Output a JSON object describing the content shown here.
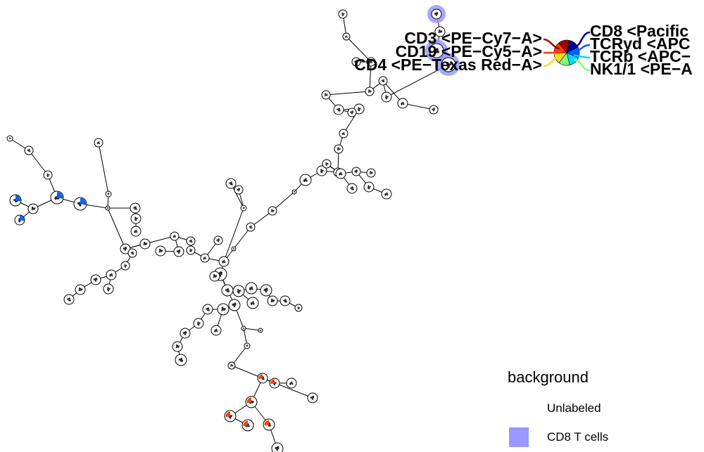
{
  "legend": {
    "title": "background",
    "items": [
      {
        "label": "Unlabeled",
        "color": "#ffffff"
      },
      {
        "label": "CD8 T cells",
        "color": "#9999ff"
      }
    ]
  },
  "markers": {
    "left": [
      {
        "label": "CD3 <PE−Cy7−A>",
        "color": "#a10000"
      },
      {
        "label": "CD19 <PE−Cy5−A>",
        "color": "#ff3b00"
      },
      {
        "label": "CD4 <PE−Texas Red−A>",
        "color": "#ffdb1f"
      }
    ],
    "right": [
      {
        "label": "CD8 <Pacific",
        "color": "#00008f"
      },
      {
        "label": "TCRγd <APC",
        "color": "#0060ff"
      },
      {
        "label": "TCRb <APC−",
        "color": "#00dbff"
      },
      {
        "label": "NK1/1 <PE−A",
        "color": "#7cff7c"
      }
    ]
  },
  "colors": {
    "node_outline": "#000000",
    "edge": "#000000",
    "cd8_highlight": "#9999ff",
    "marker_palette": [
      "#00008f",
      "#0060ff",
      "#00dbff",
      "#7cff7c",
      "#ffdb1f",
      "#ff3b00",
      "#a10000"
    ]
  }
}
